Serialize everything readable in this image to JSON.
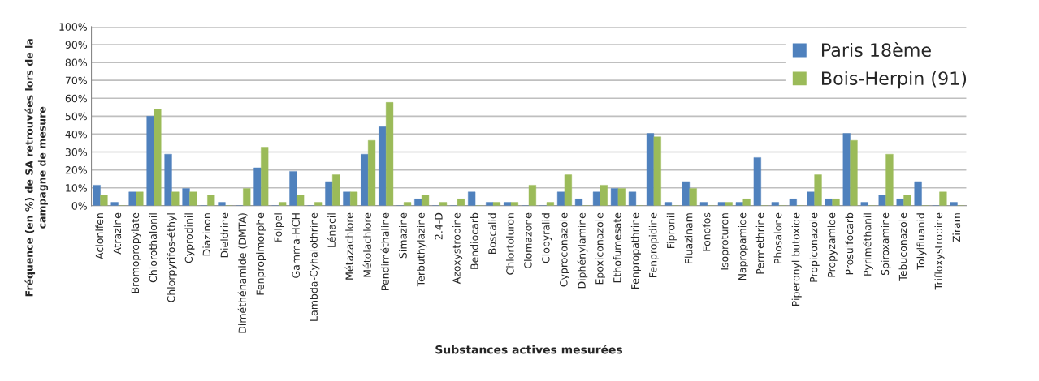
{
  "chart_data": {
    "type": "bar",
    "xlabel": "Substances actives mesurées",
    "ylabel": "Fréquence (en %) de SA retrouvées lors de la\ncampagne de mesure",
    "categories": [
      "Aclonifen",
      "Atrazine",
      "Bromopropylate",
      "Chlorothalonil",
      "Chlorpyrifos-éthyl",
      "Cyprodinil",
      "Diazinon",
      "Dieldrine",
      "Diméthénamide (DMTA)",
      "Fenpropimorphe",
      "Folpel",
      "Gamma-HCH",
      "Lambda-Cyhalothrine",
      "Lénacil",
      "Métazachlore",
      "Métolachlore",
      "Pendiméthaline",
      "Simazine",
      "Terbuthylazine",
      "2.4-D",
      "Azoxystrobine",
      "Bendiocarb",
      "Boscalid",
      "Chlortoluron",
      "Clomazone",
      "Clopyralid",
      "Cyproconazole",
      "Diphénylamine",
      "Epoxiconazole",
      "Ethofumesate",
      "Fenpropathrine",
      "Fenpropidine",
      "Fipronil",
      "Fluazinam",
      "Fonofos",
      "Isoproturon",
      "Napropamide",
      "Permethrine",
      "Phosalone",
      "Piperonyl butoxide",
      "Propiconazole",
      "Propyzamide",
      "Prosulfocarb",
      "Pyriméthanil",
      "Spiroxamine",
      "Tebuconazole",
      "Tolylfluanid",
      "Trifloxystrobine",
      "Ziram"
    ],
    "series": [
      {
        "name": "Paris 18ème",
        "color": "#4f81bd",
        "values": [
          11.5,
          1.9,
          7.7,
          50,
          28.8,
          9.6,
          0,
          1.9,
          0,
          21.2,
          0,
          19.2,
          0,
          13.5,
          7.7,
          28.8,
          44.2,
          0,
          3.8,
          0,
          0,
          7.7,
          1.9,
          1.9,
          0,
          0,
          7.7,
          3.8,
          7.7,
          9.6,
          7.7,
          40.4,
          1.9,
          13.5,
          1.9,
          1.9,
          1.9,
          26.9,
          1.9,
          3.8,
          7.7,
          3.8,
          40.4,
          1.9,
          5.8,
          3.8,
          13.5,
          0,
          1.9
        ]
      },
      {
        "name": "Bois-Herpin (91)",
        "color": "#9bbb59",
        "values": [
          5.8,
          0,
          7.7,
          53.8,
          7.7,
          7.7,
          5.8,
          0,
          9.6,
          32.7,
          1.9,
          5.8,
          1.9,
          17.3,
          7.7,
          36.5,
          57.7,
          1.9,
          5.8,
          1.9,
          3.8,
          0,
          1.9,
          1.9,
          11.5,
          1.9,
          17.3,
          0,
          11.5,
          9.6,
          0,
          38.5,
          0,
          9.6,
          0,
          1.9,
          3.8,
          0,
          0,
          0,
          17.3,
          3.8,
          36.5,
          0,
          28.8,
          5.8,
          0,
          7.7,
          0
        ]
      }
    ],
    "ylim": [
      0,
      100
    ],
    "yticks": [
      {
        "value": 0,
        "label": "0%"
      },
      {
        "value": 10,
        "label": "10%"
      },
      {
        "value": 20,
        "label": "20%"
      },
      {
        "value": 30,
        "label": "30%"
      },
      {
        "value": 40,
        "label": "40%"
      },
      {
        "value": 50,
        "label": "50%"
      },
      {
        "value": 60,
        "label": "60%"
      },
      {
        "value": 70,
        "label": "70%"
      },
      {
        "value": 80,
        "label": "80%"
      },
      {
        "value": 90,
        "label": "90%"
      },
      {
        "value": 100,
        "label": "100%"
      }
    ],
    "grid": "y",
    "legend": "top right"
  }
}
